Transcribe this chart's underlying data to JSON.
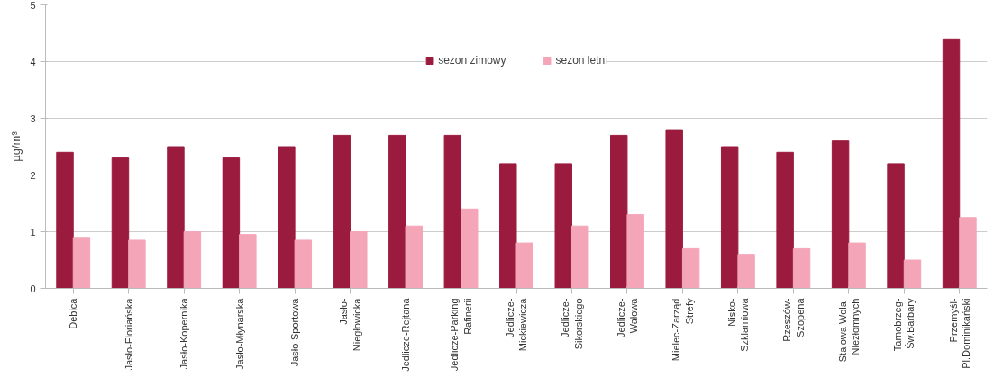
{
  "chart_data": {
    "type": "bar",
    "ylabel": "µg/m³",
    "categories": [
      "Debica",
      "Jasło-Floriańska",
      "Jasło-Kopernika",
      "Jasło-Młynarska",
      "Jasło-Sportowa",
      "Jasło-\nNiegłowicka",
      "Jedlicze-Rejtana",
      "Jedlicze-Parking\nRafinerii",
      "Jedlicze-\nMickiewicza",
      "Jedlicze-\nSikorskiego",
      "Jedlicze-\nWałowa",
      "Mielec-Zarząd\nStrefy",
      "Nisko-\nSzklarniowa",
      "Rzeszów-\nSzopena",
      "Stalowa Wola-\nNiezłomnych",
      "Tarnobrzeg-\nŚw.Barbary",
      "Przemyśl-\nPl.Dominikański"
    ],
    "series": [
      {
        "name": "sezon zimowy",
        "color": "#9b1b3e",
        "values": [
          2.4,
          2.3,
          2.5,
          2.3,
          2.5,
          2.7,
          2.7,
          2.7,
          2.2,
          2.2,
          2.7,
          2.8,
          2.5,
          2.4,
          2.6,
          2.2,
          4.4
        ]
      },
      {
        "name": "sezon letni",
        "color": "#f4a6b8",
        "values": [
          0.9,
          0.85,
          1.0,
          0.95,
          0.85,
          1.0,
          1.1,
          1.4,
          0.8,
          1.1,
          1.3,
          0.7,
          0.6,
          0.7,
          0.8,
          0.5,
          1.25
        ]
      }
    ],
    "ylim": [
      0,
      5
    ],
    "yticks": [
      0,
      1,
      2,
      3,
      4,
      5
    ],
    "grid": "y",
    "legend": "top"
  }
}
